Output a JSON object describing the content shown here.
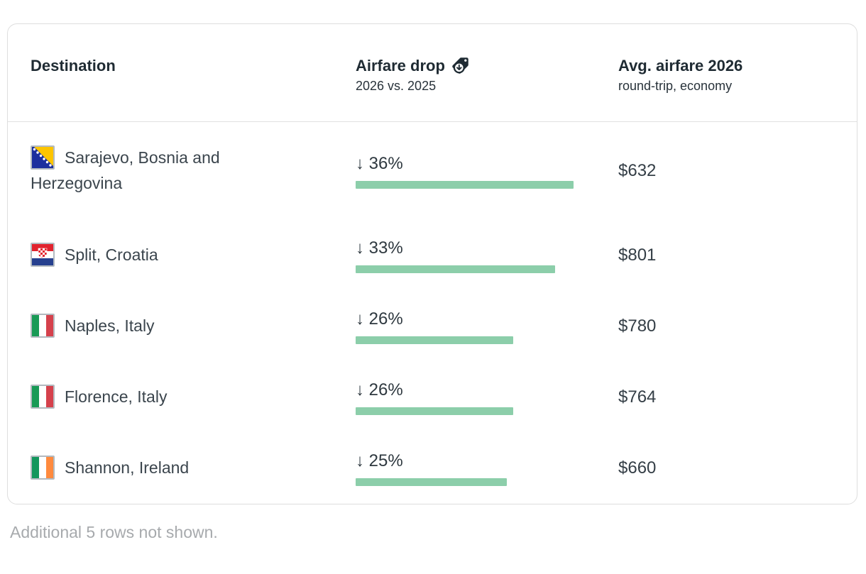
{
  "card": {
    "columns": [
      {
        "label": "Destination",
        "sublabel": ""
      },
      {
        "label": "Airfare drop",
        "sublabel": "2026 vs. 2025",
        "icon": "price-tag-down-icon"
      },
      {
        "label": "Avg. airfare 2026",
        "sublabel": "round-trip, economy"
      }
    ],
    "rows": [
      {
        "destination": "Sarajevo, Bosnia and Herzegovina",
        "flag": "bosnia-and-herzegovina",
        "drop_label": "↓ 36%",
        "drop_pct": 36,
        "fare": "$632"
      },
      {
        "destination": "Split, Croatia",
        "flag": "croatia",
        "drop_label": "↓ 33%",
        "drop_pct": 33,
        "fare": "$801"
      },
      {
        "destination": "Naples, Italy",
        "flag": "italy",
        "drop_label": "↓ 26%",
        "drop_pct": 26,
        "fare": "$780"
      },
      {
        "destination": "Florence, Italy",
        "flag": "italy",
        "drop_label": "↓ 26%",
        "drop_pct": 26,
        "fare": "$764"
      },
      {
        "destination": "Shannon, Ireland",
        "flag": "ireland",
        "drop_label": "↓ 25%",
        "drop_pct": 25,
        "fare": "$660"
      }
    ],
    "footer_note": "Additional 5 rows not shown."
  },
  "chart_data": {
    "type": "table",
    "title": "",
    "columns": [
      "Destination",
      "Airfare drop (2026 vs. 2025)",
      "Avg. airfare 2026 (round-trip, economy)"
    ],
    "rows": [
      {
        "destination": "Sarajevo, Bosnia and Herzegovina",
        "airfare_drop_pct": -36,
        "avg_airfare_2026_usd": 632
      },
      {
        "destination": "Split, Croatia",
        "airfare_drop_pct": -33,
        "avg_airfare_2026_usd": 801
      },
      {
        "destination": "Naples, Italy",
        "airfare_drop_pct": -26,
        "avg_airfare_2026_usd": 780
      },
      {
        "destination": "Florence, Italy",
        "airfare_drop_pct": -26,
        "avg_airfare_2026_usd": 764
      },
      {
        "destination": "Shannon, Ireland",
        "airfare_drop_pct": -25,
        "avg_airfare_2026_usd": 660
      }
    ],
    "bar_encoding": {
      "column": "airfare_drop_pct",
      "max_abs_pct": 36,
      "color": "#8cceaa",
      "orientation": "horizontal"
    },
    "note": "Additional 5 rows not shown."
  },
  "colors": {
    "bar_green": "#8cceaa",
    "header_text": "#1f2b33",
    "body_text": "#3b454d",
    "muted_text": "#a7aaad",
    "border": "#dedede"
  }
}
